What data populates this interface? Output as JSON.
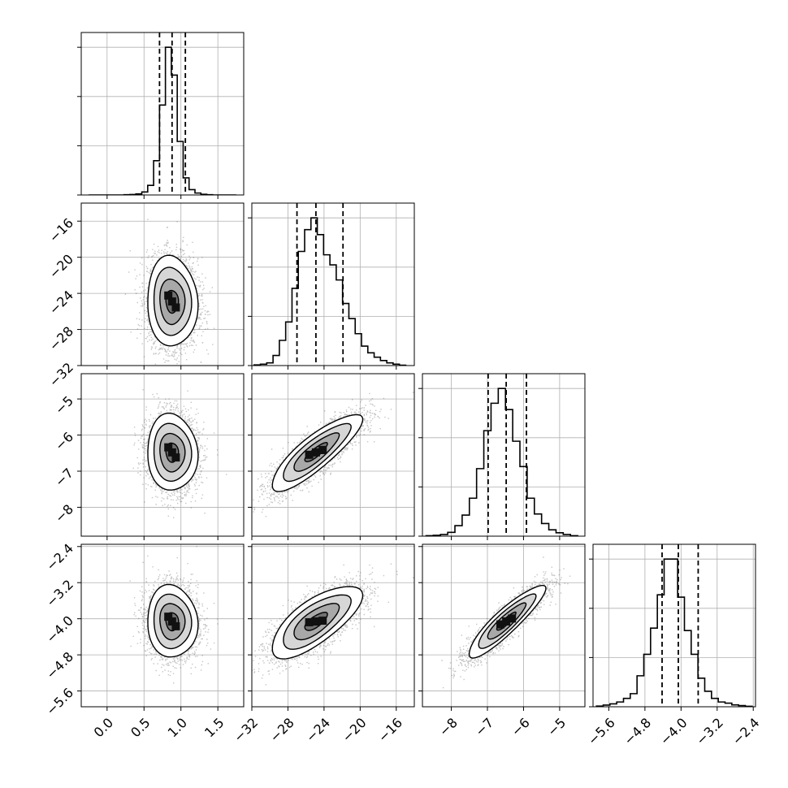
{
  "figure": {
    "style": {
      "hist_color": "#000000",
      "contour_color": "#000000",
      "sample_color": "#555555",
      "grid_color": "#b0b0b0",
      "background": "#ffffff"
    },
    "tick_labels": {
      "p0": [
        "0.0",
        "0.5",
        "1.0",
        "1.5"
      ],
      "p1": [
        "−32",
        "−28",
        "−24",
        "−20",
        "−16"
      ],
      "p2": [
        "−8",
        "−7",
        "−6",
        "−5"
      ],
      "p3": [
        "−5.6",
        "−4.8",
        "−4.0",
        "−3.2",
        "−2.4"
      ]
    }
  },
  "chart_data": {
    "type": "corner",
    "grid": true,
    "parameters": [
      {
        "id": "p0",
        "range": [
          -0.35,
          1.85
        ],
        "ticks": [
          0.0,
          0.5,
          1.0,
          1.5
        ],
        "quantiles": [
          0.71,
          0.88,
          1.06
        ],
        "median": 0.88,
        "sigma": 0.17,
        "hist_bins": [
          -0.21,
          -0.13,
          -0.05,
          0.03,
          0.11,
          0.19,
          0.27,
          0.35,
          0.43,
          0.51,
          0.59,
          0.67,
          0.75,
          0.83,
          0.91,
          0.99,
          1.07,
          1.15,
          1.23,
          1.31,
          1.39,
          1.47,
          1.55,
          1.63,
          1.71
        ],
        "hist_counts": [
          0,
          0,
          0,
          0,
          0,
          0,
          1,
          2,
          5,
          14,
          45,
          160,
          420,
          690,
          560,
          250,
          80,
          25,
          9,
          3,
          1,
          0,
          0,
          0,
          0
        ]
      },
      {
        "id": "p1",
        "range": [
          -32.0,
          -14.0
        ],
        "ticks": [
          -32,
          -28,
          -24,
          -20,
          -16
        ],
        "quantiles": [
          -27.0,
          -24.9,
          -21.9
        ],
        "median": -24.9,
        "sigma": 2.5,
        "hist_bins": [
          -31.4,
          -30.7,
          -30.0,
          -29.3,
          -28.6,
          -27.9,
          -27.2,
          -26.5,
          -25.8,
          -25.1,
          -24.4,
          -23.7,
          -23.0,
          -22.3,
          -21.6,
          -20.9,
          -20.2,
          -19.5,
          -18.8,
          -18.1,
          -17.4,
          -16.7,
          -16.0,
          -15.3
        ],
        "hist_counts": [
          2,
          4,
          8,
          30,
          75,
          130,
          230,
          340,
          405,
          440,
          390,
          330,
          300,
          255,
          185,
          140,
          95,
          58,
          38,
          25,
          15,
          8,
          4,
          1
        ]
      },
      {
        "id": "p2",
        "range": [
          -8.8,
          -4.3
        ],
        "ticks": [
          -8,
          -7,
          -6,
          -5
        ],
        "quantiles": [
          -6.98,
          -6.48,
          -5.92
        ],
        "median": -6.48,
        "sigma": 0.53,
        "hist_bins": [
          -8.6,
          -8.4,
          -8.2,
          -8.0,
          -7.8,
          -7.6,
          -7.4,
          -7.2,
          -7.0,
          -6.8,
          -6.6,
          -6.4,
          -6.2,
          -6.0,
          -5.8,
          -5.6,
          -5.4,
          -5.2,
          -5.0,
          -4.8,
          -4.6
        ],
        "hist_counts": [
          2,
          4,
          8,
          18,
          50,
          100,
          180,
          320,
          500,
          630,
          700,
          600,
          450,
          330,
          180,
          105,
          60,
          30,
          16,
          8,
          2
        ]
      },
      {
        "id": "p3",
        "range": [
          -5.95,
          -2.35
        ],
        "ticks": [
          -5.6,
          -4.8,
          -4.0,
          -3.2,
          -2.4
        ],
        "quantiles": [
          -4.42,
          -4.06,
          -3.62
        ],
        "median": -4.06,
        "sigma": 0.4,
        "hist_bins": [
          -5.8,
          -5.65,
          -5.5,
          -5.35,
          -5.2,
          -5.05,
          -4.9,
          -4.75,
          -4.6,
          -4.45,
          -4.3,
          -4.15,
          -4.0,
          -3.85,
          -3.7,
          -3.55,
          -3.4,
          -3.25,
          -3.1,
          -2.95,
          -2.8,
          -2.65,
          -2.5
        ],
        "hist_counts": [
          3,
          7,
          12,
          20,
          35,
          55,
          130,
          220,
          330,
          470,
          620,
          620,
          460,
          320,
          220,
          120,
          65,
          35,
          20,
          15,
          8,
          5,
          2
        ]
      }
    ],
    "correlations": [
      [
        1.0,
        -0.05,
        -0.05,
        -0.05
      ],
      [
        -0.05,
        1.0,
        0.85,
        0.72
      ],
      [
        -0.05,
        0.85,
        1.0,
        0.9
      ],
      [
        -0.05,
        0.72,
        0.9,
        1.0
      ]
    ],
    "contour_levels_sigma": [
      0.5,
      1.0,
      1.5,
      2.0
    ],
    "n_samples_shown": 3200
  }
}
